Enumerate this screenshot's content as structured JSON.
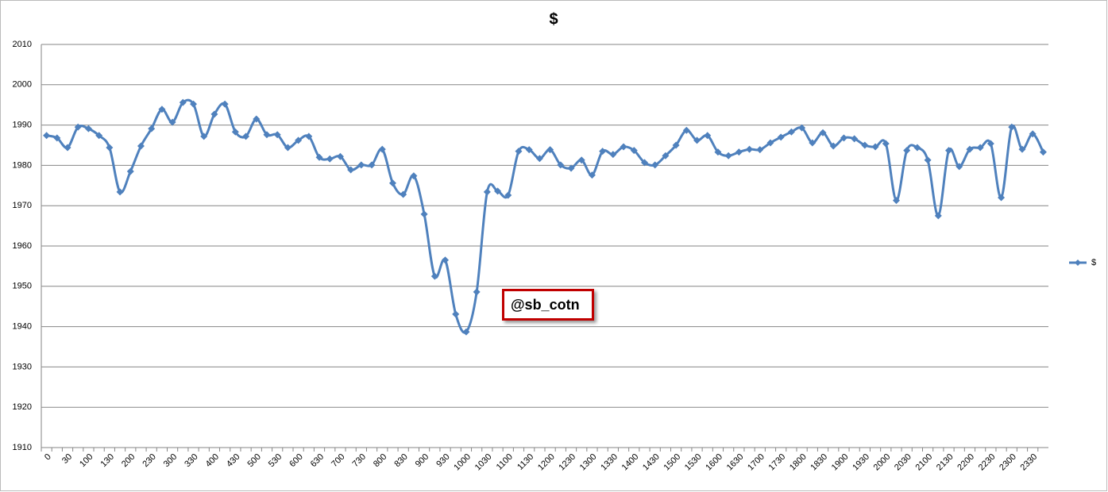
{
  "chart_data": {
    "type": "line",
    "title": "$",
    "annotation": "@sb_cotn",
    "categories": [
      "0",
      null,
      "30",
      null,
      "100",
      null,
      "130",
      null,
      "200",
      null,
      "230",
      null,
      "300",
      null,
      "330",
      null,
      "400",
      null,
      "430",
      null,
      "500",
      null,
      "530",
      null,
      "600",
      null,
      "630",
      null,
      "700",
      null,
      "730",
      null,
      "800",
      null,
      "830",
      null,
      "900",
      null,
      "930",
      null,
      "1000",
      null,
      "1030",
      null,
      "1100",
      null,
      "1130",
      null,
      "1200",
      null,
      "1230",
      null,
      "1300",
      null,
      "1330",
      null,
      "1400",
      null,
      "1430",
      null,
      "1500",
      null,
      "1530",
      null,
      "1600",
      null,
      "1630",
      null,
      "1700",
      null,
      "1730",
      null,
      "1800",
      null,
      "1830",
      null,
      "1900",
      null,
      "1930",
      null,
      "2000",
      null,
      "2030",
      null,
      "2100",
      null,
      "2130",
      null,
      "2200",
      null,
      "2230",
      null,
      "2300",
      null,
      "2330",
      null
    ],
    "series": [
      {
        "name": "$",
        "color": "#4f81bd",
        "values": [
          1987.4,
          1986.8,
          1984.4,
          1989.5,
          1989.1,
          1987.4,
          1984.4,
          1973.4,
          1978.5,
          1984.8,
          1989.1,
          1993.9,
          1990.7,
          1995.6,
          1995.2,
          1987.2,
          1992.7,
          1995.2,
          1988.3,
          1987.2,
          1991.5,
          1987.6,
          1987.6,
          1984.4,
          1986.2,
          1987.2,
          1982.0,
          1981.6,
          1982.2,
          1978.9,
          1980.1,
          1980.1,
          1984.0,
          1975.6,
          1972.8,
          1977.4,
          1967.9,
          1952.5,
          1956.5,
          1943.1,
          1938.7,
          1948.6,
          1973.4,
          1973.6,
          1972.6,
          1983.5,
          1983.9,
          1981.7,
          1983.9,
          1980.1,
          1979.3,
          1981.3,
          1977.6,
          1983.5,
          1982.7,
          1984.6,
          1983.7,
          1980.7,
          1980.1,
          1982.4,
          1985.0,
          1988.7,
          1986.2,
          1987.4,
          1983.3,
          1982.4,
          1983.3,
          1984.0,
          1983.9,
          1985.6,
          1987.0,
          1988.3,
          1989.3,
          1985.6,
          1988.1,
          1984.8,
          1986.8,
          1986.6,
          1985.0,
          1984.6,
          1985.4,
          1971.3,
          1983.7,
          1984.4,
          1981.3,
          1967.5,
          1983.7,
          1979.7,
          1984.0,
          1984.4,
          1985.4,
          1972.0,
          1989.5,
          1984.0,
          1987.8,
          1983.3
        ]
      }
    ],
    "ylim": [
      1910,
      2010
    ],
    "yticks": [
      1910,
      1920,
      1930,
      1940,
      1950,
      1960,
      1970,
      1980,
      1990,
      2000,
      2010
    ],
    "grid": true,
    "legend": "right"
  }
}
